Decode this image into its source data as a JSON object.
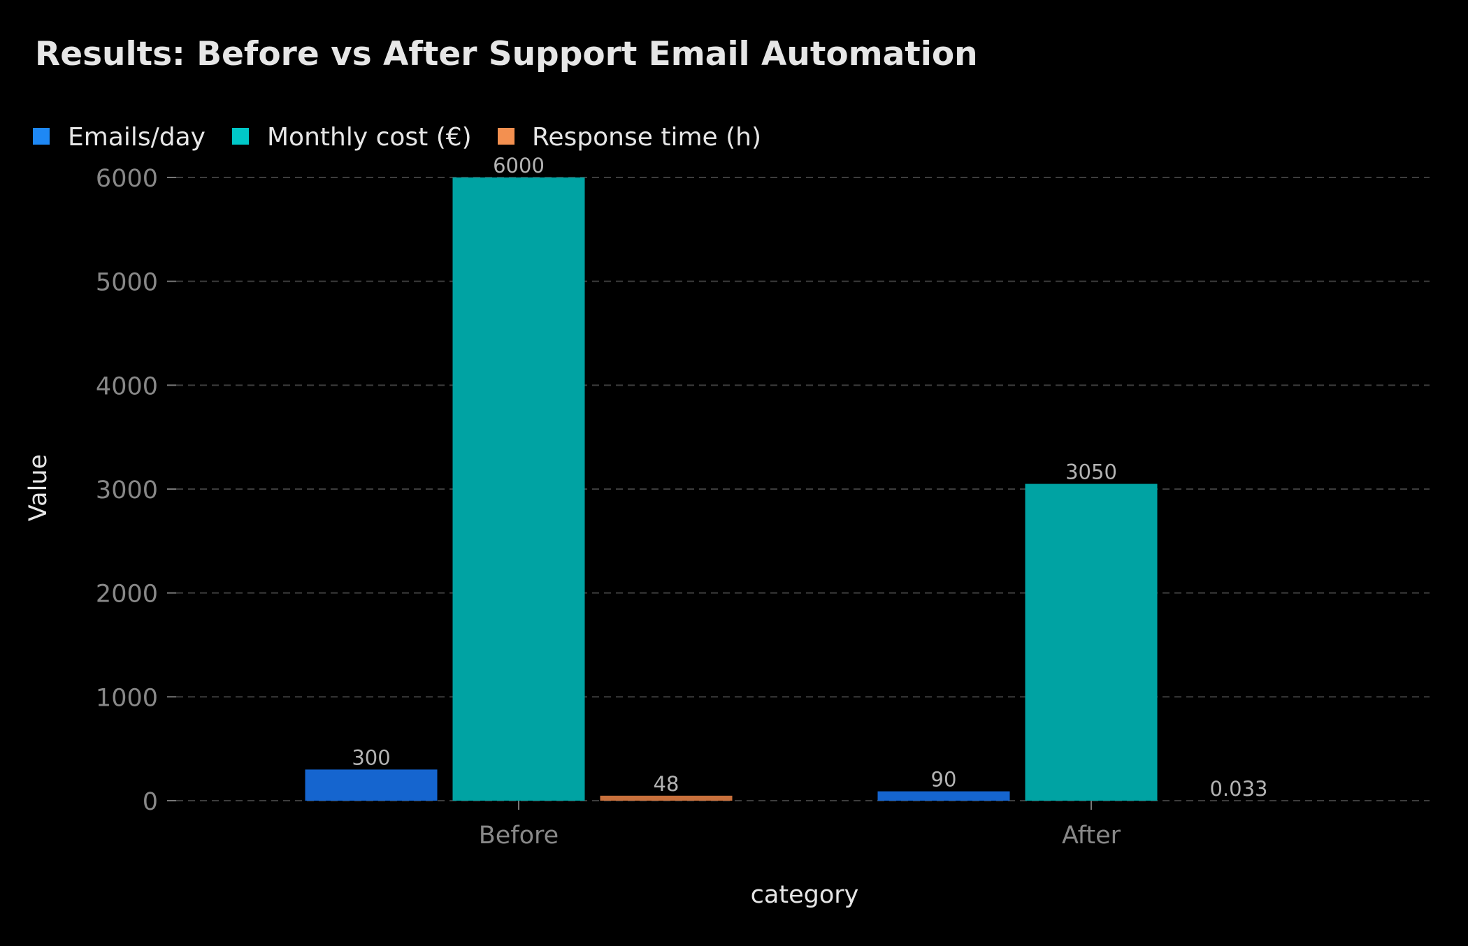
{
  "chart_data": {
    "type": "bar",
    "title": "Results: Before vs After Support Email Automation",
    "xlabel": "category",
    "ylabel": "Value",
    "categories": [
      "Before",
      "After"
    ],
    "series": [
      {
        "name": "Emails/day",
        "values": [
          300,
          90
        ],
        "labels": [
          "300",
          "90"
        ]
      },
      {
        "name": "Monthly cost (€)",
        "values": [
          6000,
          3050
        ],
        "labels": [
          "6000",
          "3050"
        ]
      },
      {
        "name": "Response time (h)",
        "values": [
          48,
          0.033
        ],
        "labels": [
          "48",
          "0.033"
        ]
      }
    ],
    "ylim": [
      0,
      6000
    ],
    "yticks": [
      "0",
      "1000",
      "2000",
      "3000",
      "4000",
      "5000",
      "6000"
    ],
    "grid": "horizontal dashed",
    "legend": "top-left",
    "colors": {
      "background": "#000000",
      "series": [
        "#1565cf",
        "#00a3a3",
        "#c8703c"
      ],
      "legend_swatches": [
        "#1e88f5",
        "#00c8c8",
        "#f39050"
      ]
    }
  }
}
